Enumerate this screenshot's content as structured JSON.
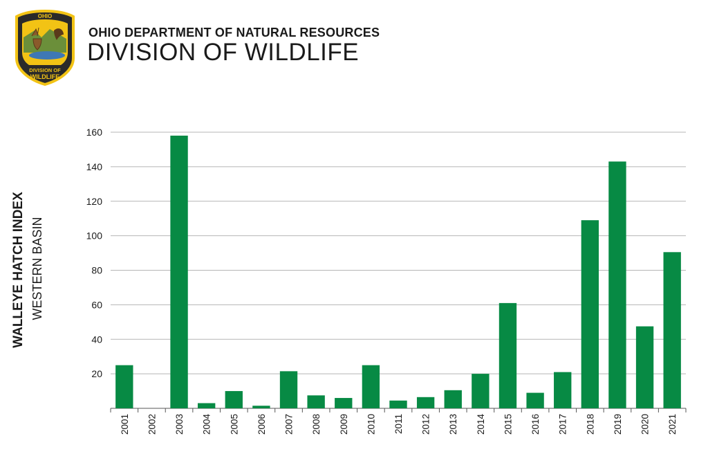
{
  "header": {
    "org_line": "OHIO DEPARTMENT OF NATURAL RESOURCES",
    "division_line": "DIVISION OF WILDLIFE",
    "logo": {
      "top_text": "OHIO",
      "bottom_text_1": "DIVISION OF",
      "bottom_text_2": "WILDLIFE"
    }
  },
  "colors": {
    "bar": "#078a44",
    "grid": "#b5b5b5",
    "logo_gold": "#f2c315",
    "logo_dark": "#2a2a2a"
  },
  "chart_data": {
    "type": "bar",
    "title": "",
    "ylabel": "WALLEYE HATCH INDEX",
    "ysublabel": "WESTERN BASIN",
    "xlabel": "",
    "categories": [
      "2001",
      "2002",
      "2003",
      "2004",
      "2005",
      "2006",
      "2007",
      "2008",
      "2009",
      "2010",
      "2011",
      "2012",
      "2013",
      "2014",
      "2015",
      "2016",
      "2017",
      "2018",
      "2019",
      "2020",
      "2021"
    ],
    "values": [
      25,
      0,
      158,
      3,
      10,
      1.5,
      21.5,
      7.5,
      6,
      25,
      4.5,
      6.5,
      10.5,
      20,
      61,
      9,
      21,
      109,
      143,
      47.5,
      90.5
    ],
    "ylim": [
      0,
      160
    ],
    "yticks": [
      20,
      40,
      60,
      80,
      100,
      120,
      140,
      160
    ],
    "grid": true
  }
}
